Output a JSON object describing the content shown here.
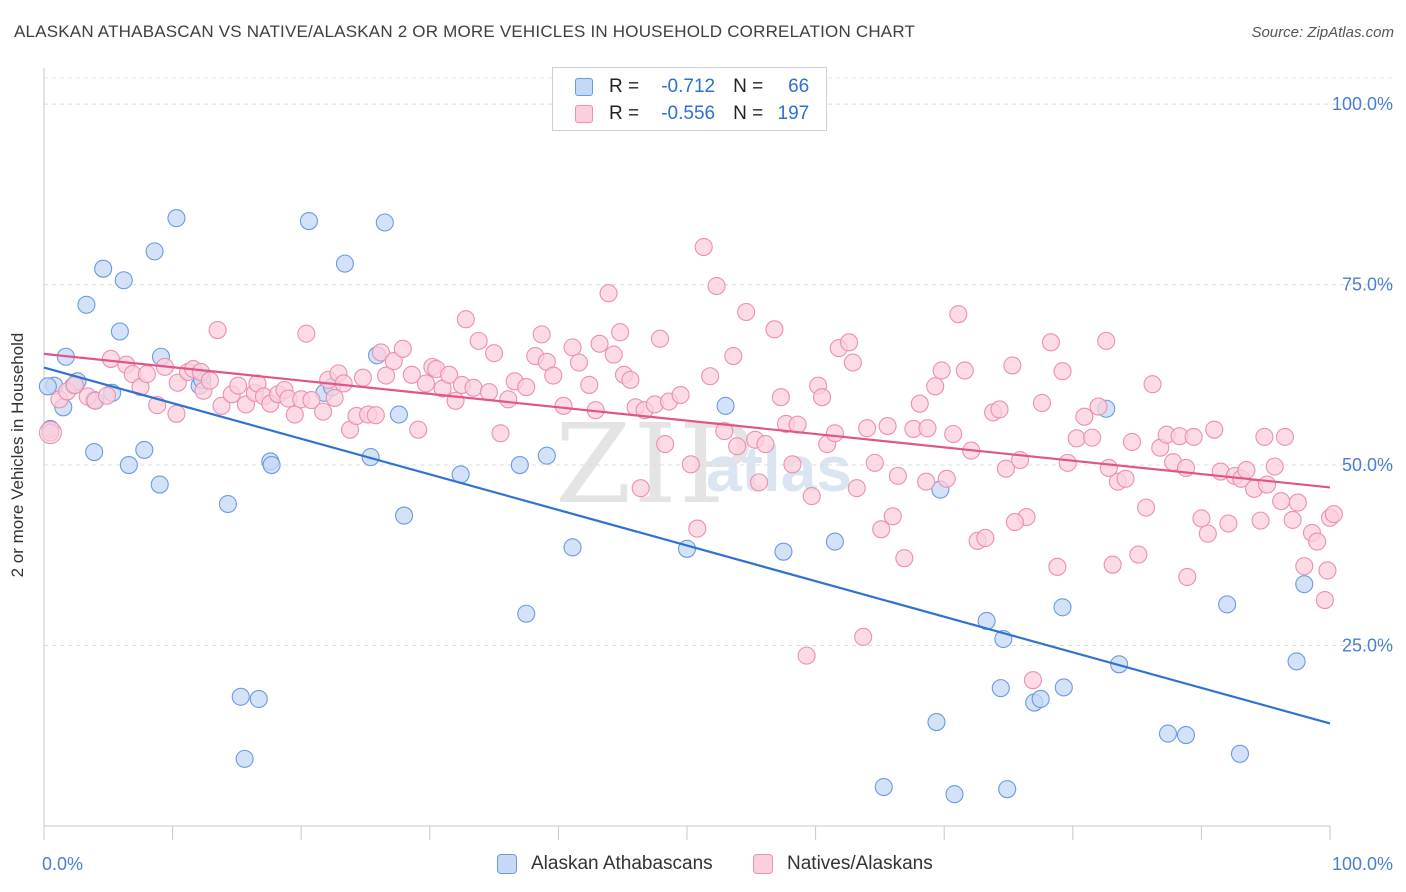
{
  "title": "ALASKAN ATHABASCAN VS NATIVE/ALASKAN 2 OR MORE VEHICLES IN HOUSEHOLD CORRELATION CHART",
  "source": "Source: ZipAtlas.com",
  "watermark": {
    "zip": "ZIP",
    "atlas": "atlas"
  },
  "legend": {
    "r_label": "R =",
    "n_label": "N =",
    "rows": [
      {
        "r": "-0.712",
        "n": "66",
        "fill": "#c5d8f5",
        "stroke": "#6a9ae0"
      },
      {
        "r": "-0.556",
        "n": "197",
        "fill": "#fbcfdc",
        "stroke": "#ec8fb0"
      }
    ]
  },
  "bottom_legend": [
    {
      "name": "Alaskan Athabascans",
      "fill": "#c5d8f5",
      "stroke": "#6a9ae0"
    },
    {
      "name": "Natives/Alaskans",
      "fill": "#fbcfdc",
      "stroke": "#ec8fb0"
    }
  ],
  "chart_data": {
    "type": "scatter",
    "ylabel": "2 or more Vehicles in Household",
    "xlim": [
      0,
      100
    ],
    "ylim": [
      0,
      105
    ],
    "x_tick_labels": [
      {
        "value": 0,
        "label": "0.0%"
      },
      {
        "value": 100,
        "label": "100.0%"
      }
    ],
    "y_tick_labels": [
      {
        "value": 25,
        "label": "25.0%"
      },
      {
        "value": 50,
        "label": "50.0%"
      },
      {
        "value": 75,
        "label": "75.0%"
      },
      {
        "value": 100,
        "label": "100.0%"
      }
    ],
    "grid": true,
    "series": [
      {
        "name": "Alaskan Athabascans",
        "color": "#6a9ae0",
        "fill": "#c5d8f5",
        "line_color": "#2f73d0",
        "trend": [
          [
            0,
            63.5
          ],
          [
            100,
            14.2
          ]
        ],
        "points": [
          [
            0.5,
            55.0
          ],
          [
            0.8,
            61.0
          ],
          [
            1.5,
            58.0
          ],
          [
            1.7,
            65.0
          ],
          [
            2.3,
            61.0
          ],
          [
            2.6,
            61.6
          ],
          [
            3.3,
            72.2
          ],
          [
            3.9,
            59.0
          ],
          [
            3.9,
            51.8
          ],
          [
            4.6,
            77.2
          ],
          [
            5.3,
            60.0
          ],
          [
            5.9,
            68.5
          ],
          [
            6.2,
            75.6
          ],
          [
            6.6,
            50.0
          ],
          [
            7.8,
            52.1
          ],
          [
            8.6,
            79.6
          ],
          [
            9.0,
            47.3
          ],
          [
            9.1,
            65.0
          ],
          [
            10.3,
            84.2
          ],
          [
            12.1,
            61.0
          ],
          [
            12.3,
            61.8
          ],
          [
            14.3,
            44.6
          ],
          [
            15.3,
            17.9
          ],
          [
            15.6,
            9.3
          ],
          [
            16.7,
            17.6
          ],
          [
            17.6,
            50.5
          ],
          [
            17.7,
            50.0
          ],
          [
            20.6,
            83.8
          ],
          [
            21.8,
            60.0
          ],
          [
            22.4,
            60.8
          ],
          [
            23.4,
            77.9
          ],
          [
            25.4,
            51.1
          ],
          [
            25.9,
            65.2
          ],
          [
            26.5,
            83.6
          ],
          [
            27.6,
            57.0
          ],
          [
            28.0,
            43.0
          ],
          [
            32.4,
            48.7
          ],
          [
            37.5,
            29.4
          ],
          [
            37.0,
            50.0
          ],
          [
            39.1,
            51.3
          ],
          [
            41.1,
            38.6
          ],
          [
            50.0,
            38.4
          ],
          [
            53.0,
            58.2
          ],
          [
            57.5,
            38.0
          ],
          [
            61.5,
            39.4
          ],
          [
            65.3,
            5.4
          ],
          [
            69.4,
            14.4
          ],
          [
            69.7,
            46.6
          ],
          [
            70.8,
            4.4
          ],
          [
            73.3,
            28.4
          ],
          [
            74.4,
            19.1
          ],
          [
            74.6,
            25.9
          ],
          [
            74.9,
            5.1
          ],
          [
            77.0,
            17.1
          ],
          [
            77.5,
            17.6
          ],
          [
            79.3,
            19.2
          ],
          [
            79.2,
            30.3
          ],
          [
            82.6,
            57.8
          ],
          [
            83.6,
            22.4
          ],
          [
            87.4,
            12.8
          ],
          [
            88.8,
            12.6
          ],
          [
            92.0,
            30.7
          ],
          [
            93.0,
            10.0
          ],
          [
            97.4,
            22.8
          ],
          [
            98.0,
            33.5
          ],
          [
            0.3,
            60.9
          ]
        ]
      },
      {
        "name": "Natives/Alaskans",
        "color": "#ec8fb0",
        "fill": "#fbcfdc",
        "line_color": "#e0558a",
        "trend": [
          [
            0,
            65.4
          ],
          [
            100,
            46.9
          ]
        ],
        "points": [
          [
            0.5,
            54.5
          ],
          [
            1.2,
            59.1
          ],
          [
            1.8,
            60.2
          ],
          [
            2.4,
            61.1
          ],
          [
            3.4,
            59.5
          ],
          [
            4.0,
            58.9
          ],
          [
            4.9,
            59.6
          ],
          [
            5.2,
            64.7
          ],
          [
            6.4,
            63.9
          ],
          [
            6.9,
            62.6
          ],
          [
            7.5,
            60.8
          ],
          [
            8.0,
            62.6
          ],
          [
            8.8,
            58.3
          ],
          [
            9.4,
            63.6
          ],
          [
            10.3,
            57.1
          ],
          [
            10.4,
            61.4
          ],
          [
            11.2,
            62.9
          ],
          [
            11.6,
            63.3
          ],
          [
            12.2,
            62.9
          ],
          [
            12.4,
            60.3
          ],
          [
            12.9,
            61.7
          ],
          [
            13.5,
            68.7
          ],
          [
            13.8,
            58.2
          ],
          [
            14.6,
            59.8
          ],
          [
            15.1,
            61.0
          ],
          [
            15.7,
            58.4
          ],
          [
            16.4,
            60.0
          ],
          [
            16.6,
            61.3
          ],
          [
            17.1,
            59.5
          ],
          [
            17.6,
            58.5
          ],
          [
            18.2,
            59.8
          ],
          [
            18.7,
            60.4
          ],
          [
            19.0,
            59.2
          ],
          [
            19.5,
            57.0
          ],
          [
            20.0,
            59.1
          ],
          [
            20.4,
            68.2
          ],
          [
            20.8,
            59.0
          ],
          [
            21.7,
            57.4
          ],
          [
            22.1,
            61.8
          ],
          [
            22.6,
            59.3
          ],
          [
            22.9,
            62.7
          ],
          [
            23.3,
            61.3
          ],
          [
            23.8,
            54.9
          ],
          [
            24.3,
            56.8
          ],
          [
            24.8,
            62.1
          ],
          [
            25.2,
            57.0
          ],
          [
            25.8,
            56.9
          ],
          [
            26.2,
            65.6
          ],
          [
            26.6,
            62.4
          ],
          [
            27.2,
            64.4
          ],
          [
            27.9,
            66.1
          ],
          [
            28.6,
            62.5
          ],
          [
            29.1,
            54.9
          ],
          [
            29.7,
            61.3
          ],
          [
            30.2,
            63.6
          ],
          [
            30.5,
            63.3
          ],
          [
            31.0,
            60.6
          ],
          [
            31.5,
            62.5
          ],
          [
            32.0,
            58.9
          ],
          [
            32.5,
            61.1
          ],
          [
            32.8,
            70.2
          ],
          [
            33.4,
            60.7
          ],
          [
            33.8,
            67.2
          ],
          [
            34.6,
            60.1
          ],
          [
            35.0,
            65.5
          ],
          [
            35.5,
            54.4
          ],
          [
            36.1,
            59.1
          ],
          [
            36.6,
            61.6
          ],
          [
            37.5,
            60.8
          ],
          [
            38.2,
            65.1
          ],
          [
            38.7,
            68.1
          ],
          [
            39.1,
            64.3
          ],
          [
            39.6,
            62.4
          ],
          [
            40.4,
            58.2
          ],
          [
            41.1,
            66.3
          ],
          [
            41.6,
            64.2
          ],
          [
            42.4,
            61.1
          ],
          [
            42.9,
            57.6
          ],
          [
            43.2,
            66.8
          ],
          [
            43.9,
            73.8
          ],
          [
            44.3,
            65.3
          ],
          [
            44.8,
            68.4
          ],
          [
            45.1,
            62.5
          ],
          [
            45.6,
            61.8
          ],
          [
            46.0,
            58.0
          ],
          [
            46.4,
            46.8
          ],
          [
            46.7,
            57.6
          ],
          [
            47.5,
            58.4
          ],
          [
            47.9,
            67.5
          ],
          [
            48.3,
            52.9
          ],
          [
            48.6,
            58.8
          ],
          [
            49.5,
            59.7
          ],
          [
            50.3,
            50.1
          ],
          [
            50.8,
            41.2
          ],
          [
            51.3,
            80.2
          ],
          [
            51.8,
            62.3
          ],
          [
            52.3,
            74.8
          ],
          [
            52.9,
            54.7
          ],
          [
            53.6,
            65.1
          ],
          [
            53.9,
            52.6
          ],
          [
            54.6,
            71.2
          ],
          [
            55.3,
            53.5
          ],
          [
            55.6,
            47.6
          ],
          [
            56.1,
            52.9
          ],
          [
            56.8,
            68.8
          ],
          [
            57.3,
            59.4
          ],
          [
            57.7,
            55.7
          ],
          [
            58.2,
            50.1
          ],
          [
            58.6,
            55.6
          ],
          [
            59.3,
            23.6
          ],
          [
            59.7,
            45.7
          ],
          [
            60.2,
            61.0
          ],
          [
            60.5,
            59.4
          ],
          [
            60.9,
            52.9
          ],
          [
            61.5,
            54.4
          ],
          [
            61.8,
            66.2
          ],
          [
            62.6,
            67.0
          ],
          [
            62.9,
            64.2
          ],
          [
            63.2,
            46.8
          ],
          [
            63.7,
            26.2
          ],
          [
            64.0,
            55.1
          ],
          [
            64.6,
            50.3
          ],
          [
            65.1,
            41.1
          ],
          [
            65.6,
            55.4
          ],
          [
            66.0,
            42.9
          ],
          [
            66.4,
            48.5
          ],
          [
            66.9,
            37.1
          ],
          [
            67.6,
            55.0
          ],
          [
            68.1,
            58.5
          ],
          [
            68.7,
            55.1
          ],
          [
            69.3,
            60.9
          ],
          [
            69.8,
            63.1
          ],
          [
            70.2,
            48.1
          ],
          [
            70.7,
            54.3
          ],
          [
            71.1,
            70.9
          ],
          [
            71.6,
            63.1
          ],
          [
            72.1,
            52.0
          ],
          [
            72.6,
            39.5
          ],
          [
            73.2,
            39.9
          ],
          [
            73.8,
            57.3
          ],
          [
            74.3,
            57.7
          ],
          [
            74.8,
            49.5
          ],
          [
            75.3,
            63.8
          ],
          [
            75.9,
            50.7
          ],
          [
            76.4,
            42.8
          ],
          [
            76.9,
            20.2
          ],
          [
            77.6,
            58.6
          ],
          [
            78.3,
            67.0
          ],
          [
            78.8,
            35.9
          ],
          [
            79.2,
            63.0
          ],
          [
            79.6,
            50.3
          ],
          [
            80.3,
            53.7
          ],
          [
            80.9,
            56.7
          ],
          [
            81.5,
            53.8
          ],
          [
            82.0,
            58.1
          ],
          [
            82.6,
            67.2
          ],
          [
            83.1,
            36.2
          ],
          [
            83.5,
            47.7
          ],
          [
            84.1,
            48.1
          ],
          [
            84.6,
            53.2
          ],
          [
            85.1,
            37.6
          ],
          [
            85.7,
            44.1
          ],
          [
            86.2,
            61.2
          ],
          [
            86.8,
            52.4
          ],
          [
            87.3,
            54.2
          ],
          [
            87.8,
            50.4
          ],
          [
            88.3,
            54.0
          ],
          [
            88.8,
            49.6
          ],
          [
            89.4,
            53.9
          ],
          [
            90.0,
            42.6
          ],
          [
            90.5,
            40.5
          ],
          [
            91.0,
            54.9
          ],
          [
            91.5,
            49.1
          ],
          [
            92.1,
            41.9
          ],
          [
            92.6,
            48.5
          ],
          [
            93.1,
            48.1
          ],
          [
            93.5,
            49.3
          ],
          [
            94.1,
            46.7
          ],
          [
            94.6,
            42.3
          ],
          [
            95.1,
            47.3
          ],
          [
            95.7,
            49.8
          ],
          [
            96.2,
            45.0
          ],
          [
            96.5,
            53.9
          ],
          [
            97.1,
            42.4
          ],
          [
            97.5,
            44.8
          ],
          [
            98.0,
            36.0
          ],
          [
            98.6,
            40.6
          ],
          [
            99.0,
            39.4
          ],
          [
            99.6,
            31.3
          ],
          [
            100.0,
            42.7
          ],
          [
            100.3,
            43.2
          ],
          [
            99.8,
            35.4
          ],
          [
            94.9,
            53.9
          ],
          [
            88.9,
            34.5
          ],
          [
            82.8,
            49.6
          ],
          [
            75.5,
            42.1
          ],
          [
            68.6,
            47.7
          ]
        ]
      }
    ]
  }
}
